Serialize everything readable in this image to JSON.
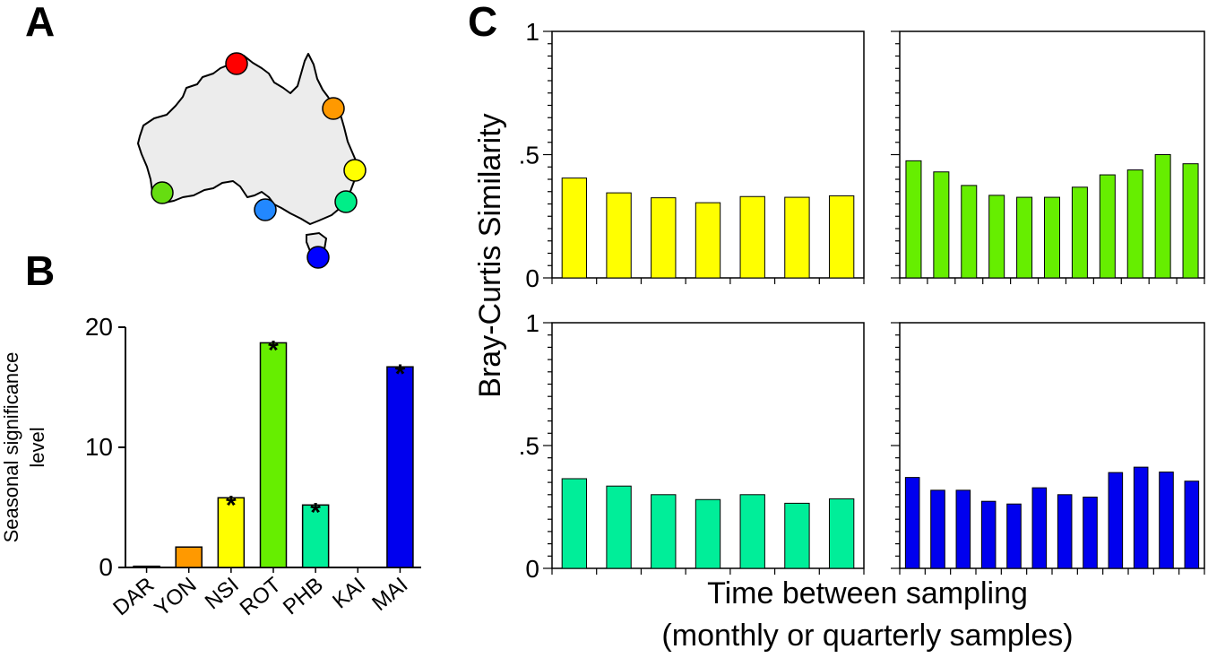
{
  "panels": {
    "a": "A",
    "b": "B",
    "c": "C"
  },
  "map": {
    "sites": [
      {
        "name": "DAR",
        "color": "#ff0000"
      },
      {
        "name": "YON",
        "color": "#ff9900"
      },
      {
        "name": "NSI",
        "color": "#ffff00"
      },
      {
        "name": "PHB",
        "color": "#00ee88"
      },
      {
        "name": "ROT",
        "color": "#66dd11"
      },
      {
        "name": "KAI",
        "color": "#2288ff"
      },
      {
        "name": "MAI",
        "color": "#0000ff"
      }
    ]
  },
  "chart_data": [
    {
      "id": "B",
      "type": "bar",
      "categories": [
        "DAR",
        "YON",
        "NSI",
        "ROT",
        "PHB",
        "KAI",
        "MAI"
      ],
      "values": [
        0.1,
        1.7,
        5.8,
        18.7,
        5.2,
        0,
        16.7
      ],
      "colors": [
        "#ff2200",
        "#ff9900",
        "#ffff00",
        "#66ee00",
        "#00ee99",
        "#2299ff",
        "#0000ee"
      ],
      "significant": [
        false,
        false,
        true,
        true,
        true,
        false,
        true
      ],
      "marker": "*",
      "ylabel": [
        "Seasonal significance",
        "level"
      ],
      "yticks": [
        0,
        10,
        20
      ],
      "ylim": [
        0,
        20
      ]
    },
    {
      "id": "C",
      "type": "bar",
      "ylabel": "Bray-Curtis Similarity",
      "xlabel": [
        "Time between sampling",
        "(monthly or quarterly samples)"
      ],
      "yticks": [
        "0",
        ".5",
        "1"
      ],
      "ylim": [
        0,
        1
      ],
      "subplots": [
        {
          "site": "NSI",
          "color": "#ffff00",
          "values": [
            0.405,
            0.345,
            0.325,
            0.305,
            0.33,
            0.327,
            0.333
          ]
        },
        {
          "site": "ROT",
          "color": "#66ee00",
          "values": [
            0.475,
            0.43,
            0.375,
            0.335,
            0.327,
            0.327,
            0.368,
            0.418,
            0.438,
            0.5,
            0.463
          ]
        },
        {
          "site": "PHB",
          "color": "#00ee99",
          "values": [
            0.365,
            0.335,
            0.3,
            0.28,
            0.3,
            0.265,
            0.283
          ]
        },
        {
          "site": "MAI",
          "color": "#0000ee",
          "values": [
            0.37,
            0.318,
            0.318,
            0.273,
            0.262,
            0.328,
            0.3,
            0.29,
            0.39,
            0.412,
            0.392,
            0.355
          ]
        }
      ]
    }
  ]
}
